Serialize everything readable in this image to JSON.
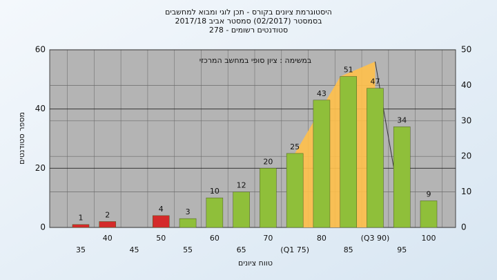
{
  "chart_data": {
    "type": "bar",
    "title": "היסטוגרמת ציונים בקורס - תכן לוגי ומבוא למחשבים",
    "subtitle": "בסמסטר (02/2017) סמסטר אביב 2017/18",
    "subtitle2": "סטודנטים רשומים - 278",
    "annotation": "במשימה : ציון סופי במחשב המרכזי",
    "x_label": "טווח ציונים",
    "y_label": "מספר סטודנטים",
    "categories": [
      "35",
      "40",
      "45",
      "50",
      "55",
      "60",
      "65",
      "70",
      "(Q1 75)",
      "80",
      "85",
      "(Q3 90)",
      "95",
      "100"
    ],
    "values": [
      1,
      2,
      null,
      4,
      3,
      10,
      12,
      20,
      25,
      43,
      51,
      47,
      34,
      9
    ],
    "colors": [
      "#d42a2a",
      "#d42a2a",
      null,
      "#d42a2a",
      "#8fbf3a",
      "#8fbf3a",
      "#8fbf3a",
      "#8fbf3a",
      "#8fbf3a",
      "#8fbf3a",
      "#8fbf3a",
      "#8fbf3a",
      "#8fbf3a",
      "#8fbf3a"
    ],
    "ylim": [
      0,
      60
    ],
    "yticks": [
      0,
      20,
      40,
      60
    ],
    "y2lim": [
      0,
      50
    ],
    "y2ticks": [
      0,
      10,
      20,
      30,
      40,
      50
    ],
    "grid": true
  }
}
